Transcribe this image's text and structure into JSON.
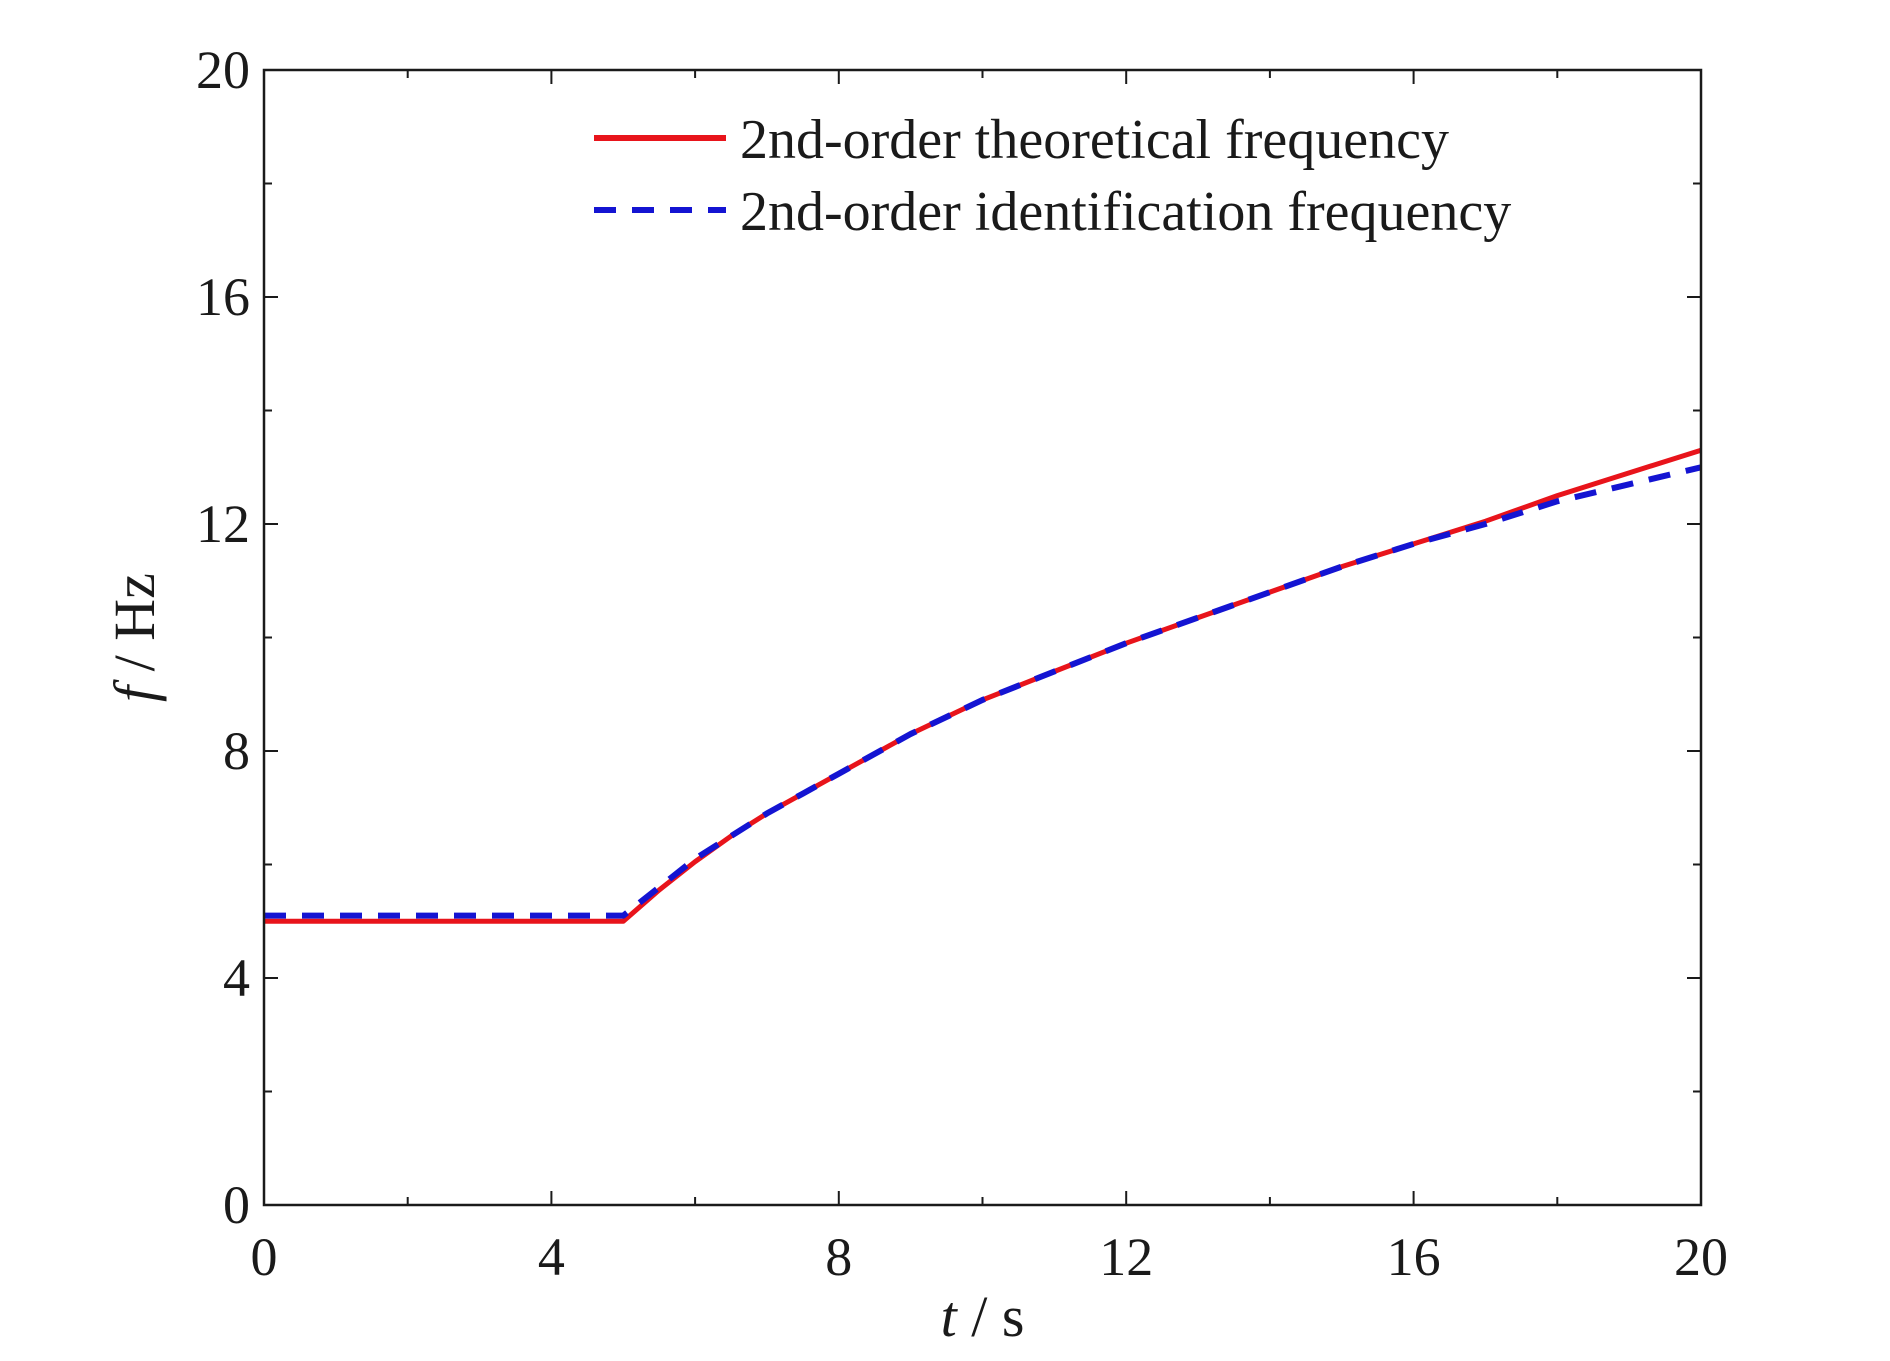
{
  "chart_data": {
    "type": "line",
    "title": "",
    "xlabel": {
      "var": "t",
      "sep": " / ",
      "unit": "s"
    },
    "ylabel": {
      "var": "f",
      "sep": " / ",
      "unit": "Hz"
    },
    "xlim": [
      0,
      20
    ],
    "ylim": [
      0,
      20
    ],
    "xticks": [
      0,
      4,
      8,
      12,
      16,
      20
    ],
    "yticks": [
      0,
      4,
      8,
      12,
      16,
      20
    ],
    "grid": false,
    "legend_position": "top-right",
    "series": [
      {
        "name": "2nd-order theoretical frequency",
        "color": "#e8141b",
        "style": "solid",
        "x": [
          0,
          5,
          5.5,
          6,
          6.5,
          7,
          7.5,
          8,
          9,
          10,
          11,
          12,
          13,
          14,
          15,
          16,
          17,
          18,
          19,
          20
        ],
        "y": [
          5.0,
          5.0,
          5.55,
          6.05,
          6.5,
          6.9,
          7.25,
          7.6,
          8.3,
          8.9,
          9.4,
          9.9,
          10.35,
          10.8,
          11.25,
          11.65,
          12.05,
          12.5,
          12.9,
          13.3
        ]
      },
      {
        "name": "2nd-order identification frequency",
        "color": "#1414d2",
        "style": "dashed",
        "x": [
          0,
          5,
          5.5,
          6,
          6.5,
          7,
          7.5,
          8,
          9,
          10,
          11,
          12,
          13,
          14,
          15,
          16,
          17,
          18,
          19,
          20
        ],
        "y": [
          5.1,
          5.1,
          5.6,
          6.1,
          6.5,
          6.9,
          7.25,
          7.6,
          8.3,
          8.9,
          9.4,
          9.9,
          10.35,
          10.8,
          11.25,
          11.65,
          12.0,
          12.4,
          12.7,
          13.0
        ]
      }
    ]
  }
}
